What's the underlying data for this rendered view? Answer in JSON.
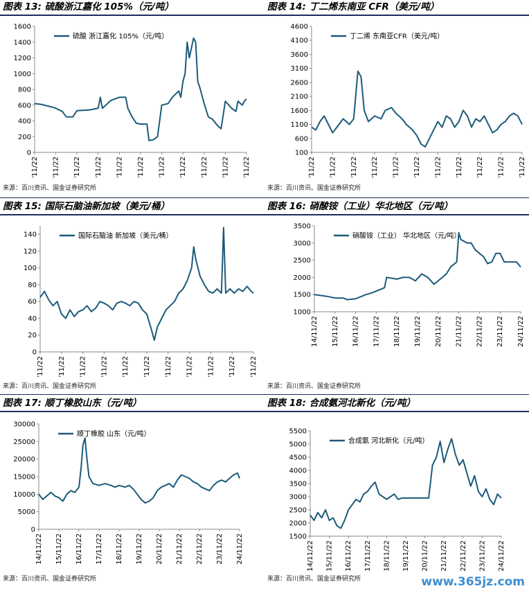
{
  "panels": [
    {
      "title": "图表 13: 硫酸浙江嘉化 105%（元/吨）",
      "source": "来源：百川资讯、国金证券研究所"
    },
    {
      "title": "图表 14: 丁二烯东南亚 CFR（美元/吨）",
      "source": "来源：百川资讯、国金证券研究所"
    },
    {
      "title": "图表 15: 国际石脑油新加坡（美元/桶）",
      "source": "来源：百川资讯、国金证券研究所"
    },
    {
      "title": "图表 16: 硝酸铵（工业）华北地区（元/吨）",
      "source": "来源：百川资讯、国金证券研究所"
    },
    {
      "title": "图表 17: 顺丁橡胶山东（元/吨）",
      "source": "来源：百川资讯、国金证券研究所"
    },
    {
      "title": "图表 18: 合成氨河北新化（元/吨）",
      "source": "来源：百川资讯、国金证券研究所"
    }
  ],
  "watermark": "www.365jz.com",
  "colors": {
    "line": "#1b5a7a",
    "title_rule": "#1b2d5c",
    "axis": "#888888"
  },
  "chart_data": [
    {
      "type": "line",
      "series_name": "硫酸 浙江嘉化 105%（元/吨）",
      "ylim": [
        0,
        1600
      ],
      "yticks": [
        0,
        200,
        400,
        600,
        800,
        1000,
        1200,
        1400,
        1600
      ],
      "xtick_labels": [
        "14/11/22",
        "15/11/22",
        "16/11/22",
        "17/11/22",
        "18/11/22",
        "19/11/22",
        "20/11/22",
        "21/11/22",
        "22/11/22",
        "23/11/22",
        "24/11/22"
      ],
      "points": [
        [
          0,
          620
        ],
        [
          0.3,
          610
        ],
        [
          0.6,
          590
        ],
        [
          0.9,
          570
        ],
        [
          1.0,
          560
        ],
        [
          1.3,
          520
        ],
        [
          1.5,
          450
        ],
        [
          1.8,
          450
        ],
        [
          2.0,
          530
        ],
        [
          2.6,
          540
        ],
        [
          3.0,
          560
        ],
        [
          3.1,
          700
        ],
        [
          3.2,
          560
        ],
        [
          3.6,
          660
        ],
        [
          3.8,
          680
        ],
        [
          4.0,
          700
        ],
        [
          4.3,
          700
        ],
        [
          4.4,
          560
        ],
        [
          4.6,
          450
        ],
        [
          4.8,
          370
        ],
        [
          5.0,
          360
        ],
        [
          5.3,
          360
        ],
        [
          5.4,
          150
        ],
        [
          5.6,
          160
        ],
        [
          5.8,
          200
        ],
        [
          6.0,
          600
        ],
        [
          6.3,
          620
        ],
        [
          6.5,
          700
        ],
        [
          6.8,
          780
        ],
        [
          6.9,
          700
        ],
        [
          7.0,
          900
        ],
        [
          7.1,
          1000
        ],
        [
          7.2,
          1400
        ],
        [
          7.3,
          1200
        ],
        [
          7.5,
          1450
        ],
        [
          7.6,
          1400
        ],
        [
          7.7,
          900
        ],
        [
          7.8,
          820
        ],
        [
          8.0,
          620
        ],
        [
          8.2,
          450
        ],
        [
          8.4,
          420
        ],
        [
          8.6,
          350
        ],
        [
          8.8,
          300
        ],
        [
          9.0,
          650
        ],
        [
          9.1,
          620
        ],
        [
          9.3,
          560
        ],
        [
          9.5,
          520
        ],
        [
          9.6,
          650
        ],
        [
          9.8,
          600
        ],
        [
          9.9,
          650
        ],
        [
          10.0,
          680
        ]
      ]
    },
    {
      "type": "line",
      "series_name": "丁二烯 东南亚CFR（美元/吨）",
      "ylim": [
        100,
        4600
      ],
      "yticks": [
        100,
        600,
        1100,
        1600,
        2100,
        2600,
        3100,
        3600,
        4100,
        4600
      ],
      "xtick_labels": [
        "14/11/22",
        "15/11/22",
        "16/11/22",
        "17/11/22",
        "18/11/22",
        "19/11/22",
        "20/11/22",
        "21/11/22",
        "22/11/22",
        "23/11/22",
        "24/11/22"
      ],
      "points": [
        [
          0,
          1000
        ],
        [
          0.2,
          900
        ],
        [
          0.4,
          1200
        ],
        [
          0.6,
          1400
        ],
        [
          0.8,
          1100
        ],
        [
          1.0,
          800
        ],
        [
          1.2,
          1000
        ],
        [
          1.5,
          1300
        ],
        [
          1.8,
          1100
        ],
        [
          2.0,
          1300
        ],
        [
          2.2,
          3000
        ],
        [
          2.35,
          2800
        ],
        [
          2.5,
          1600
        ],
        [
          2.7,
          1200
        ],
        [
          3.0,
          1400
        ],
        [
          3.3,
          1300
        ],
        [
          3.5,
          1600
        ],
        [
          3.8,
          1700
        ],
        [
          4.0,
          1500
        ],
        [
          4.3,
          1300
        ],
        [
          4.5,
          1100
        ],
        [
          4.8,
          900
        ],
        [
          5.0,
          700
        ],
        [
          5.2,
          400
        ],
        [
          5.4,
          300
        ],
        [
          5.6,
          600
        ],
        [
          5.8,
          900
        ],
        [
          6.0,
          1200
        ],
        [
          6.2,
          1000
        ],
        [
          6.4,
          1400
        ],
        [
          6.6,
          1300
        ],
        [
          6.8,
          1000
        ],
        [
          7.0,
          1200
        ],
        [
          7.2,
          1600
        ],
        [
          7.4,
          1400
        ],
        [
          7.6,
          1000
        ],
        [
          7.8,
          1300
        ],
        [
          8.0,
          1200
        ],
        [
          8.2,
          1400
        ],
        [
          8.4,
          1100
        ],
        [
          8.6,
          800
        ],
        [
          8.8,
          900
        ],
        [
          9.0,
          1100
        ],
        [
          9.2,
          1200
        ],
        [
          9.4,
          1400
        ],
        [
          9.6,
          1500
        ],
        [
          9.8,
          1400
        ],
        [
          10.0,
          1100
        ]
      ]
    },
    {
      "type": "line",
      "series_name": "国际石脑油 新加坡（美元/桶）",
      "ylim": [
        0,
        150
      ],
      "yticks": [
        0,
        20,
        40,
        60,
        80,
        100,
        120,
        140
      ],
      "xtick_labels": [
        "14/11/22",
        "15/11/22",
        "16/11/22",
        "17/11/22",
        "18/11/22",
        "19/11/22",
        "20/11/22",
        "21/11/22",
        "22/11/22",
        "23/11/22",
        "24/11/22"
      ],
      "points": [
        [
          0,
          65
        ],
        [
          0.2,
          72
        ],
        [
          0.4,
          62
        ],
        [
          0.6,
          55
        ],
        [
          0.8,
          60
        ],
        [
          1.0,
          45
        ],
        [
          1.2,
          40
        ],
        [
          1.4,
          50
        ],
        [
          1.6,
          42
        ],
        [
          1.8,
          48
        ],
        [
          2.0,
          50
        ],
        [
          2.2,
          55
        ],
        [
          2.4,
          48
        ],
        [
          2.6,
          52
        ],
        [
          2.8,
          60
        ],
        [
          3.0,
          58
        ],
        [
          3.2,
          55
        ],
        [
          3.4,
          50
        ],
        [
          3.6,
          58
        ],
        [
          3.8,
          60
        ],
        [
          4.0,
          58
        ],
        [
          4.2,
          55
        ],
        [
          4.4,
          60
        ],
        [
          4.6,
          58
        ],
        [
          4.8,
          50
        ],
        [
          5.0,
          45
        ],
        [
          5.2,
          28
        ],
        [
          5.35,
          14
        ],
        [
          5.5,
          30
        ],
        [
          5.7,
          40
        ],
        [
          5.9,
          50
        ],
        [
          6.1,
          55
        ],
        [
          6.3,
          60
        ],
        [
          6.5,
          70
        ],
        [
          6.7,
          75
        ],
        [
          6.9,
          85
        ],
        [
          7.1,
          100
        ],
        [
          7.2,
          125
        ],
        [
          7.3,
          110
        ],
        [
          7.5,
          90
        ],
        [
          7.7,
          80
        ],
        [
          7.9,
          72
        ],
        [
          8.1,
          70
        ],
        [
          8.3,
          75
        ],
        [
          8.5,
          70
        ],
        [
          8.6,
          148
        ],
        [
          8.7,
          70
        ],
        [
          8.9,
          75
        ],
        [
          9.1,
          70
        ],
        [
          9.3,
          75
        ],
        [
          9.5,
          72
        ],
        [
          9.7,
          78
        ],
        [
          9.9,
          72
        ],
        [
          10.0,
          70
        ]
      ]
    },
    {
      "type": "line",
      "series_name": "硝酸铵（工业） 华北地区（元/吨）",
      "ylim": [
        1000,
        3500
      ],
      "yticks": [
        1000,
        1500,
        2000,
        2500,
        3000,
        3500
      ],
      "xtick_labels": [
        "14/11/22",
        "15/11/22",
        "16/11/22",
        "17/11/22",
        "18/11/22",
        "19/11/22",
        "20/11/22",
        "21/11/22",
        "22/11/22",
        "23/11/22",
        "24/11/22"
      ],
      "points": [
        [
          0,
          1500
        ],
        [
          0.6,
          1450
        ],
        [
          1.0,
          1400
        ],
        [
          1.4,
          1400
        ],
        [
          1.6,
          1350
        ],
        [
          2.0,
          1380
        ],
        [
          2.3,
          1450
        ],
        [
          2.5,
          1500
        ],
        [
          2.8,
          1550
        ],
        [
          3.0,
          1600
        ],
        [
          3.4,
          1700
        ],
        [
          3.5,
          2000
        ],
        [
          4.0,
          1950
        ],
        [
          4.3,
          2000
        ],
        [
          4.6,
          2000
        ],
        [
          4.9,
          1900
        ],
        [
          5.2,
          2100
        ],
        [
          5.5,
          2000
        ],
        [
          5.8,
          1800
        ],
        [
          6.0,
          1900
        ],
        [
          6.2,
          2000
        ],
        [
          6.4,
          2100
        ],
        [
          6.6,
          2300
        ],
        [
          6.9,
          2450
        ],
        [
          7.0,
          3300
        ],
        [
          7.1,
          3100
        ],
        [
          7.4,
          3000
        ],
        [
          7.6,
          3000
        ],
        [
          7.8,
          2800
        ],
        [
          8.0,
          2700
        ],
        [
          8.2,
          2600
        ],
        [
          8.4,
          2400
        ],
        [
          8.6,
          2450
        ],
        [
          8.8,
          2700
        ],
        [
          9.0,
          2700
        ],
        [
          9.2,
          2450
        ],
        [
          9.6,
          2450
        ],
        [
          9.8,
          2450
        ],
        [
          10.0,
          2300
        ]
      ]
    },
    {
      "type": "line",
      "series_name": "顺丁橡胶 山东（元/吨）",
      "ylim": [
        0,
        30000
      ],
      "yticks": [
        0,
        5000,
        10000,
        15000,
        20000,
        25000,
        30000
      ],
      "xtick_labels": [
        "14/11/22",
        "15/11/22",
        "16/11/22",
        "17/11/22",
        "18/11/22",
        "19/11/22",
        "20/11/22",
        "21/11/22",
        "22/11/22",
        "23/11/22",
        "24/11/22"
      ],
      "points": [
        [
          0,
          10000
        ],
        [
          0.2,
          8500
        ],
        [
          0.4,
          9500
        ],
        [
          0.6,
          10500
        ],
        [
          0.8,
          9500
        ],
        [
          1.0,
          9000
        ],
        [
          1.2,
          8000
        ],
        [
          1.4,
          10000
        ],
        [
          1.6,
          11000
        ],
        [
          1.8,
          10500
        ],
        [
          2.0,
          12000
        ],
        [
          2.1,
          17000
        ],
        [
          2.2,
          24000
        ],
        [
          2.3,
          26000
        ],
        [
          2.4,
          20000
        ],
        [
          2.5,
          15000
        ],
        [
          2.7,
          13000
        ],
        [
          3.0,
          12500
        ],
        [
          3.3,
          13000
        ],
        [
          3.6,
          12500
        ],
        [
          3.8,
          12000
        ],
        [
          4.0,
          12500
        ],
        [
          4.3,
          12000
        ],
        [
          4.5,
          12500
        ],
        [
          4.7,
          11500
        ],
        [
          4.9,
          10000
        ],
        [
          5.1,
          8500
        ],
        [
          5.3,
          7500
        ],
        [
          5.5,
          8000
        ],
        [
          5.7,
          9000
        ],
        [
          5.9,
          11000
        ],
        [
          6.1,
          12000
        ],
        [
          6.3,
          12500
        ],
        [
          6.5,
          13000
        ],
        [
          6.7,
          12000
        ],
        [
          6.9,
          14000
        ],
        [
          7.1,
          15500
        ],
        [
          7.3,
          15000
        ],
        [
          7.5,
          14500
        ],
        [
          7.7,
          13500
        ],
        [
          7.9,
          13000
        ],
        [
          8.1,
          12000
        ],
        [
          8.3,
          11500
        ],
        [
          8.5,
          11000
        ],
        [
          8.7,
          12500
        ],
        [
          8.9,
          13500
        ],
        [
          9.1,
          14000
        ],
        [
          9.3,
          13500
        ],
        [
          9.5,
          14500
        ],
        [
          9.7,
          15500
        ],
        [
          9.9,
          16000
        ],
        [
          10.0,
          14500
        ]
      ]
    },
    {
      "type": "line",
      "series_name": "合成氨 河北新化（元/吨）",
      "ylim": [
        1500,
        5500
      ],
      "yticks": [
        1500,
        2000,
        2500,
        3000,
        3500,
        4000,
        4500,
        5000,
        5500
      ],
      "xtick_labels": [
        "14/11/22",
        "15/11/22",
        "16/11/22",
        "17/11/22",
        "18/11/22",
        "19/11/22",
        "20/11/22",
        "21/11/22",
        "22/11/22",
        "23/11/22",
        "24/11/22"
      ],
      "points": [
        [
          0,
          2300
        ],
        [
          0.2,
          2100
        ],
        [
          0.4,
          2400
        ],
        [
          0.6,
          2200
        ],
        [
          0.8,
          2500
        ],
        [
          1.0,
          2100
        ],
        [
          1.2,
          2200
        ],
        [
          1.4,
          1900
        ],
        [
          1.6,
          1800
        ],
        [
          1.8,
          2100
        ],
        [
          2.0,
          2500
        ],
        [
          2.2,
          2700
        ],
        [
          2.4,
          2900
        ],
        [
          2.6,
          2800
        ],
        [
          2.8,
          3100
        ],
        [
          3.0,
          3200
        ],
        [
          3.2,
          3400
        ],
        [
          3.4,
          3550
        ],
        [
          3.6,
          3100
        ],
        [
          3.8,
          3000
        ],
        [
          4.0,
          2900
        ],
        [
          4.2,
          3000
        ],
        [
          4.4,
          3100
        ],
        [
          4.6,
          2900
        ],
        [
          4.8,
          2950
        ],
        [
          5.0,
          2950
        ],
        [
          5.4,
          2950
        ],
        [
          5.8,
          2950
        ],
        [
          6.2,
          2950
        ],
        [
          6.4,
          4200
        ],
        [
          6.6,
          4500
        ],
        [
          6.8,
          5100
        ],
        [
          7.0,
          4300
        ],
        [
          7.2,
          4800
        ],
        [
          7.4,
          5200
        ],
        [
          7.6,
          4600
        ],
        [
          7.8,
          4200
        ],
        [
          8.0,
          4400
        ],
        [
          8.2,
          3900
        ],
        [
          8.4,
          3400
        ],
        [
          8.6,
          3800
        ],
        [
          8.8,
          3200
        ],
        [
          9.0,
          3000
        ],
        [
          9.2,
          3300
        ],
        [
          9.4,
          2900
        ],
        [
          9.6,
          2700
        ],
        [
          9.8,
          3100
        ],
        [
          10.0,
          2950
        ]
      ]
    }
  ]
}
